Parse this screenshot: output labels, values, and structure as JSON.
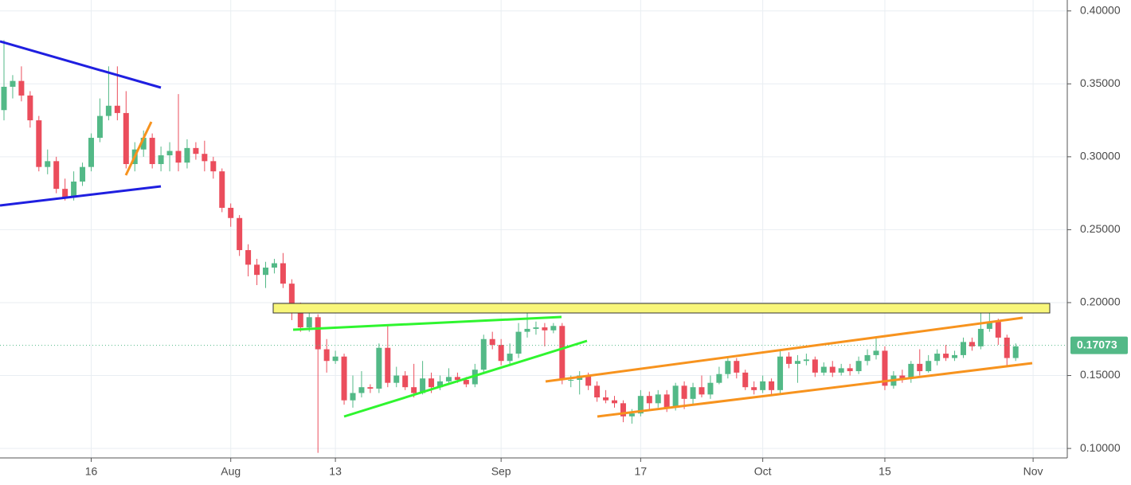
{
  "chart_data": {
    "type": "candlestick",
    "categories": [
      null,
      null,
      null,
      null,
      null,
      null,
      null,
      null,
      null,
      null,
      "16",
      null,
      null,
      null,
      null,
      null,
      null,
      null,
      null,
      null,
      null,
      null,
      null,
      null,
      null,
      null,
      "Aug",
      null,
      null,
      null,
      null,
      null,
      null,
      null,
      null,
      null,
      null,
      null,
      "13",
      null,
      null,
      null,
      null,
      null,
      null,
      null,
      null,
      null,
      null,
      null,
      null,
      null,
      null,
      null,
      null,
      null,
      null,
      "Sep",
      null,
      null,
      null,
      null,
      null,
      null,
      null,
      null,
      null,
      null,
      null,
      null,
      null,
      null,
      null,
      "17",
      null,
      null,
      null,
      null,
      null,
      null,
      null,
      null,
      null,
      null,
      null,
      null,
      null,
      "Oct",
      null,
      null,
      null,
      null,
      null,
      null,
      null,
      null,
      null,
      null,
      null,
      null,
      null,
      "15",
      null,
      null,
      null,
      null,
      null,
      null,
      null,
      null,
      null,
      null,
      null,
      null,
      null,
      null,
      null,
      null,
      "Nov"
    ],
    "open": [
      0.332,
      0.348,
      0.352,
      0.342,
      0.325,
      0.293,
      0.297,
      0.278,
      0.272,
      0.283,
      0.293,
      0.313,
      0.328,
      0.335,
      0.33,
      0.295,
      0.305,
      0.313,
      0.295,
      0.301,
      0.304,
      0.296,
      0.306,
      0.302,
      0.297,
      0.29,
      0.265,
      0.258,
      0.236,
      0.226,
      0.219,
      0.224,
      0.227,
      0.213,
      0.194,
      0.183,
      0.19,
      0.168,
      0.16,
      0.163,
      0.133,
      0.138,
      0.142,
      0.141,
      0.169,
      0.145,
      0.15,
      0.142,
      0.138,
      0.148,
      0.142,
      0.146,
      0.149,
      0.147,
      0.144,
      0.154,
      0.175,
      0.171,
      0.16,
      0.165,
      0.18,
      0.182,
      0.183,
      0.181,
      0.184,
      0.147,
      0.147,
      0.15,
      0.143,
      0.135,
      0.133,
      0.131,
      0.122,
      0.124,
      0.136,
      0.131,
      0.137,
      0.128,
      0.143,
      0.134,
      0.142,
      0.137,
      0.145,
      0.151,
      0.16,
      0.152,
      0.142,
      0.14,
      0.146,
      0.14,
      0.163,
      0.158,
      0.16,
      0.161,
      0.152,
      0.156,
      0.152,
      0.155,
      0.153,
      0.16,
      0.164,
      0.167,
      0.143,
      0.15,
      0.148,
      0.158,
      0.153,
      0.16,
      0.165,
      0.162,
      0.164,
      0.173,
      0.17,
      0.182,
      0.187,
      0.176,
      0.162,
      null,
      null
    ],
    "high": [
      0.38,
      0.356,
      0.362,
      0.345,
      0.328,
      0.305,
      0.3,
      0.285,
      0.29,
      0.296,
      0.316,
      0.34,
      0.362,
      0.362,
      0.345,
      0.31,
      0.318,
      0.316,
      0.307,
      0.31,
      0.343,
      0.312,
      0.31,
      0.311,
      0.3,
      0.292,
      0.268,
      0.26,
      0.24,
      0.23,
      0.228,
      0.23,
      0.234,
      0.216,
      0.2,
      0.198,
      0.192,
      0.175,
      0.167,
      0.165,
      0.15,
      0.153,
      0.144,
      0.172,
      0.185,
      0.156,
      0.153,
      0.158,
      0.16,
      0.152,
      0.15,
      0.155,
      0.152,
      0.149,
      0.158,
      0.178,
      0.18,
      0.175,
      0.172,
      0.186,
      0.193,
      0.187,
      0.186,
      0.186,
      0.186,
      0.15,
      0.153,
      0.152,
      0.146,
      0.14,
      0.136,
      0.133,
      0.127,
      0.14,
      0.139,
      0.14,
      0.14,
      0.145,
      0.146,
      0.145,
      0.15,
      0.15,
      0.156,
      0.163,
      0.162,
      0.154,
      0.146,
      0.15,
      0.148,
      0.168,
      0.166,
      0.164,
      0.165,
      0.163,
      0.159,
      0.16,
      0.158,
      0.158,
      0.163,
      0.168,
      0.176,
      0.17,
      0.153,
      0.154,
      0.16,
      0.168,
      0.164,
      0.168,
      0.171,
      0.167,
      0.176,
      0.176,
      0.195,
      0.196,
      0.189,
      0.178,
      0.172,
      null,
      null
    ],
    "low": [
      0.325,
      0.34,
      0.338,
      0.32,
      0.29,
      0.288,
      0.275,
      0.27,
      0.27,
      0.28,
      0.29,
      0.31,
      0.325,
      0.325,
      0.292,
      0.29,
      0.3,
      0.292,
      0.29,
      0.29,
      0.29,
      0.292,
      0.298,
      0.29,
      0.285,
      0.262,
      0.252,
      0.232,
      0.218,
      0.212,
      0.21,
      0.22,
      0.21,
      0.188,
      0.18,
      0.18,
      0.097,
      0.152,
      0.158,
      0.13,
      0.128,
      0.135,
      0.138,
      0.138,
      0.142,
      0.142,
      0.14,
      0.135,
      0.137,
      0.138,
      0.14,
      0.144,
      0.145,
      0.142,
      0.142,
      0.152,
      0.168,
      0.157,
      0.158,
      0.162,
      0.176,
      0.178,
      0.17,
      0.179,
      0.144,
      0.142,
      0.137,
      0.14,
      0.132,
      0.131,
      0.128,
      0.118,
      0.117,
      0.122,
      0.127,
      0.128,
      0.125,
      0.126,
      0.127,
      0.13,
      0.135,
      0.134,
      0.144,
      0.148,
      0.148,
      0.14,
      0.137,
      0.138,
      0.137,
      0.138,
      0.155,
      0.145,
      0.157,
      0.149,
      0.15,
      0.149,
      0.15,
      0.15,
      0.151,
      0.157,
      0.161,
      0.14,
      0.141,
      0.145,
      0.145,
      0.15,
      0.152,
      0.157,
      0.16,
      0.16,
      0.162,
      0.167,
      0.168,
      0.18,
      0.171,
      0.156,
      0.16,
      null,
      null
    ],
    "close": [
      0.348,
      0.352,
      0.342,
      0.325,
      0.293,
      0.297,
      0.278,
      0.272,
      0.283,
      0.293,
      0.313,
      0.328,
      0.335,
      0.33,
      0.295,
      0.305,
      0.313,
      0.295,
      0.301,
      0.304,
      0.296,
      0.306,
      0.302,
      0.297,
      0.29,
      0.265,
      0.258,
      0.236,
      0.226,
      0.219,
      0.224,
      0.227,
      0.213,
      0.194,
      0.183,
      0.19,
      0.168,
      0.16,
      0.163,
      0.133,
      0.138,
      0.142,
      0.141,
      0.169,
      0.145,
      0.15,
      0.142,
      0.138,
      0.148,
      0.142,
      0.146,
      0.149,
      0.147,
      0.144,
      0.154,
      0.175,
      0.171,
      0.16,
      0.165,
      0.18,
      0.182,
      0.183,
      0.181,
      0.184,
      0.147,
      0.147,
      0.15,
      0.143,
      0.135,
      0.133,
      0.131,
      0.122,
      0.124,
      0.136,
      0.131,
      0.137,
      0.128,
      0.143,
      0.134,
      0.142,
      0.137,
      0.145,
      0.151,
      0.16,
      0.152,
      0.142,
      0.14,
      0.146,
      0.14,
      0.163,
      0.158,
      0.16,
      0.161,
      0.152,
      0.156,
      0.152,
      0.155,
      0.153,
      0.16,
      0.164,
      0.167,
      0.143,
      0.15,
      0.148,
      0.158,
      0.153,
      0.16,
      0.165,
      0.162,
      0.164,
      0.173,
      0.17,
      0.182,
      0.187,
      0.176,
      0.162,
      0.17,
      null,
      null
    ],
    "up_color": "#53b987",
    "down_color": "#eb4d5c",
    "last_price": 0.17073,
    "ylim": [
      0.0935,
      0.4075
    ],
    "yticks": [
      {
        "value": 0.1,
        "label": "0.10000"
      },
      {
        "value": 0.15,
        "label": "0.15000"
      },
      {
        "value": 0.2,
        "label": "0.20000"
      },
      {
        "value": 0.25,
        "label": "0.25000"
      },
      {
        "value": 0.3,
        "label": "0.30000"
      },
      {
        "value": 0.35,
        "label": "0.35000"
      },
      {
        "value": 0.4,
        "label": "0.40000"
      }
    ],
    "grid": true
  }
}
